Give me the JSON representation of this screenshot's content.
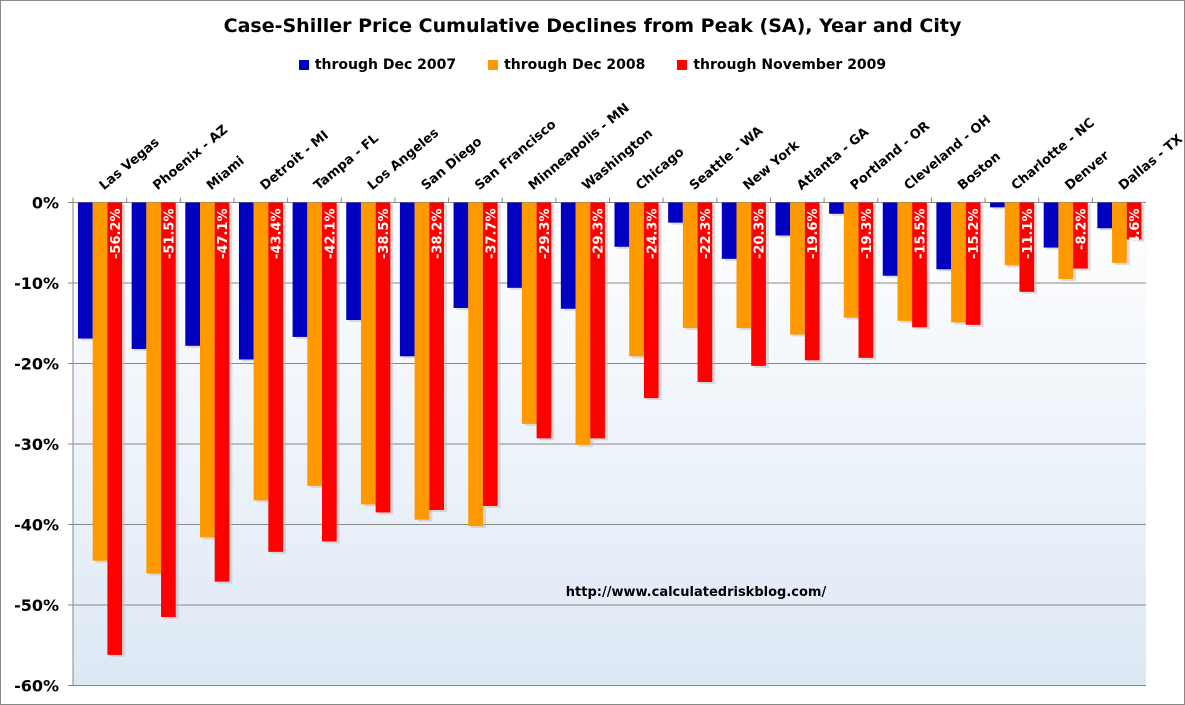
{
  "chart_data": {
    "type": "bar",
    "title": "Case-Shiller Price Cumulative Declines from Peak (SA),  Year and City",
    "annotation": "http://www.calculatedriskblog.com/",
    "ylim": [
      -60,
      0
    ],
    "yticks": [
      "0%",
      "-10%",
      "-20%",
      "-30%",
      "-40%",
      "-50%",
      "-60%"
    ],
    "grid": true,
    "legend_position": "top",
    "categories": [
      "Las Vegas",
      "Phoenix - AZ",
      "Miami",
      "Detroit - MI",
      "Tampa - FL",
      "Los Angeles",
      "San Diego",
      "San Francisco",
      "Minneapolis - MN",
      "Washington",
      "Chicago",
      "Seattle - WA",
      "New York",
      "Atlanta - GA",
      "Portland - OR",
      "Cleveland - OH",
      "Boston",
      "Charlotte - NC",
      "Denver",
      "Dallas - TX"
    ],
    "series": [
      {
        "name": "through Dec 2007",
        "color": "#0000c0",
        "values": [
          -16.9,
          -18.2,
          -17.8,
          -19.5,
          -16.7,
          -14.6,
          -19.1,
          -13.1,
          -10.6,
          -13.2,
          -5.5,
          -2.5,
          -7.0,
          -4.1,
          -1.4,
          -9.1,
          -8.3,
          -0.6,
          -5.6,
          -3.2
        ]
      },
      {
        "name": "through Dec 2008",
        "color": "#ff9900",
        "values": [
          -44.5,
          -46.1,
          -41.6,
          -37.0,
          -35.2,
          -37.5,
          -39.4,
          -40.2,
          -27.5,
          -30.1,
          -19.1,
          -15.6,
          -15.6,
          -16.4,
          -14.3,
          -14.7,
          -14.9,
          -7.8,
          -9.5,
          -7.5
        ]
      },
      {
        "name": "through November 2009",
        "color": "#ff0000",
        "values": [
          -56.2,
          -51.5,
          -47.1,
          -43.4,
          -42.1,
          -38.5,
          -38.2,
          -37.7,
          -29.3,
          -29.3,
          -24.3,
          -22.3,
          -20.3,
          -19.6,
          -19.3,
          -15.5,
          -15.2,
          -11.1,
          -8.2,
          -4.6
        ],
        "data_labels": [
          "-56.2%",
          "-51.5%",
          "-47.1%",
          "-43.4%",
          "-42.1%",
          "-38.5%",
          "-38.2%",
          "-37.7%",
          "-29.3%",
          "-29.3%",
          "-24.3%",
          "-22.3%",
          "-20.3%",
          "-19.6%",
          "-19.3%",
          "-15.5%",
          "-15.2%",
          "-11.1%",
          "-8.2%",
          "-4.6%"
        ]
      }
    ]
  }
}
